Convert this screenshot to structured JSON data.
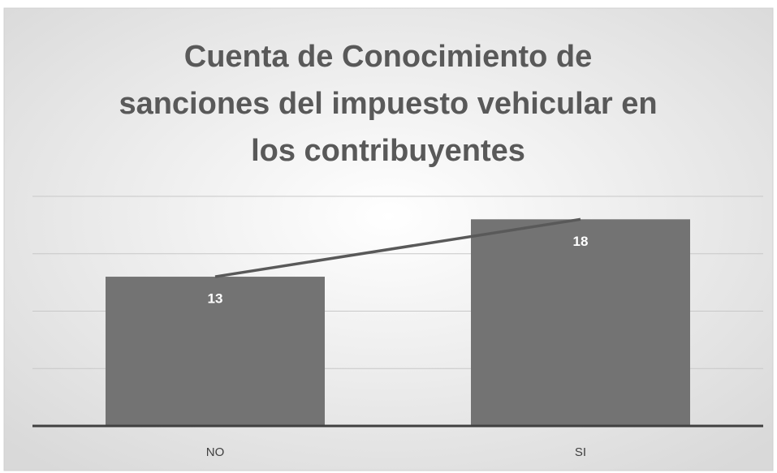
{
  "chart_data": {
    "type": "bar",
    "title": [
      "Cuenta de Conocimiento de",
      "sanciones del impuesto vehicular en",
      "los contribuyentes"
    ],
    "categories": [
      "NO",
      "SI"
    ],
    "series": [
      {
        "type": "bar",
        "color": "#737373",
        "values": [
          13,
          18
        ]
      },
      {
        "type": "line",
        "color": "#595959",
        "values": [
          13,
          18
        ]
      }
    ],
    "ylim": [
      0,
      20
    ],
    "yticks": [
      0,
      5,
      10,
      15,
      20
    ],
    "grid": true
  }
}
